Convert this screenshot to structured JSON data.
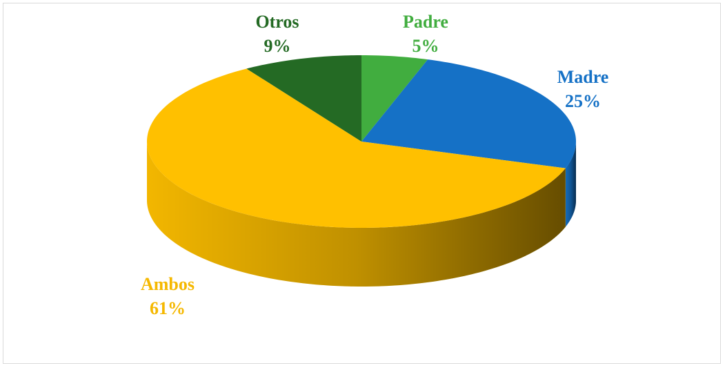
{
  "chart_data": {
    "type": "pie",
    "style": "3d",
    "title": "",
    "start": "top",
    "direction": "clockwise",
    "slices": [
      {
        "label": "Padre",
        "value": 5,
        "display": "5%",
        "color": "#41ad3f"
      },
      {
        "label": "Madre",
        "value": 25,
        "display": "25%",
        "color": "#1571c6"
      },
      {
        "label": "Ambos",
        "value": 61,
        "display": "61%",
        "color": "#ffc000"
      },
      {
        "label": "Otros",
        "value": 9,
        "display": "9%",
        "color": "#246a24"
      }
    ]
  }
}
